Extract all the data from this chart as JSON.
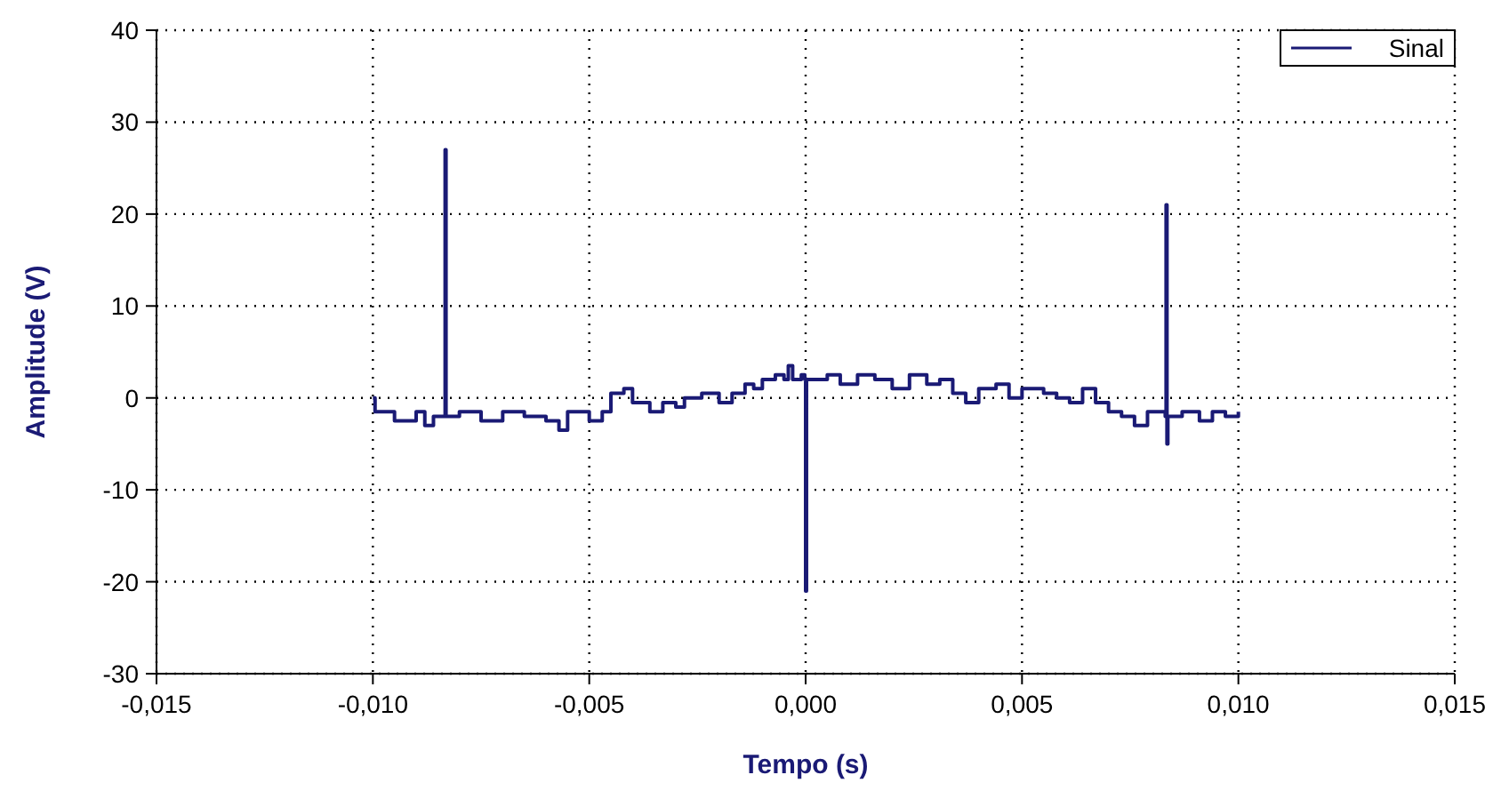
{
  "chart_data": {
    "type": "step",
    "xlabel": "Tempo (s)",
    "ylabel": "Amplitude (V)",
    "xlim": [
      -0.015,
      0.015
    ],
    "xticks": [
      {
        "value": -0.015,
        "label": "-0,015"
      },
      {
        "value": -0.01,
        "label": "-0,010"
      },
      {
        "value": -0.005,
        "label": "-0,005"
      },
      {
        "value": 0,
        "label": "0,000"
      },
      {
        "value": 0.005,
        "label": "0,005"
      },
      {
        "value": 0.01,
        "label": "0,010"
      },
      {
        "value": 0.015,
        "label": "0,015"
      }
    ],
    "ylim": [
      -30,
      40
    ],
    "yticks": [
      -30,
      -20,
      -10,
      0,
      10,
      20,
      30,
      40
    ],
    "grid": true,
    "legend": "top right",
    "series": [
      {
        "name": "Sinal",
        "color": "#1a1a75",
        "x": [
          -0.01,
          -0.00995,
          -0.0095,
          -0.009,
          -0.0088,
          -0.0086,
          -0.00835,
          -0.00833,
          -0.00831,
          -0.008,
          -0.0075,
          -0.007,
          -0.0065,
          -0.006,
          -0.0057,
          -0.0055,
          -0.005,
          -0.0047,
          -0.0045,
          -0.0042,
          -0.004,
          -0.0036,
          -0.0033,
          -0.003,
          -0.0028,
          -0.0024,
          -0.002,
          -0.0017,
          -0.0014,
          -0.0012,
          -0.001,
          -0.0007,
          -0.0005,
          -0.0004,
          -0.0003,
          -0.0001,
          -2e-05,
          0,
          2e-05,
          0.0005,
          0.0008,
          0.0012,
          0.0016,
          0.002,
          0.0024,
          0.0028,
          0.0031,
          0.0034,
          0.0037,
          0.004,
          0.0044,
          0.0047,
          0.005,
          0.0055,
          0.0058,
          0.0061,
          0.0064,
          0.0067,
          0.007,
          0.0073,
          0.0076,
          0.0079,
          0.00831,
          0.00833,
          0.00835,
          0.00837,
          0.0087,
          0.0091,
          0.0094,
          0.0097,
          0.01
        ],
        "values": [
          0,
          -1.5,
          -2.5,
          -1.5,
          -3,
          -2,
          -2,
          27,
          -2,
          -1.5,
          -2.5,
          -1.5,
          -2,
          -2.5,
          -3.5,
          -1.5,
          -2.5,
          -1.5,
          0.5,
          1,
          -0.5,
          -1.5,
          -0.5,
          -1,
          0,
          0.5,
          -0.5,
          0.5,
          1.5,
          1,
          2,
          2.5,
          2,
          3.5,
          2,
          2.5,
          2,
          -21,
          2,
          2.5,
          1.5,
          2.5,
          2,
          1,
          2.5,
          1.5,
          2,
          0.5,
          -0.5,
          1,
          1.5,
          0,
          1,
          0.5,
          0,
          -0.5,
          1,
          -0.5,
          -1.5,
          -2,
          -3,
          -1.5,
          -2,
          21,
          -5,
          -2,
          -1.5,
          -2.5,
          -1.5,
          -2,
          -1.5
        ]
      }
    ]
  }
}
